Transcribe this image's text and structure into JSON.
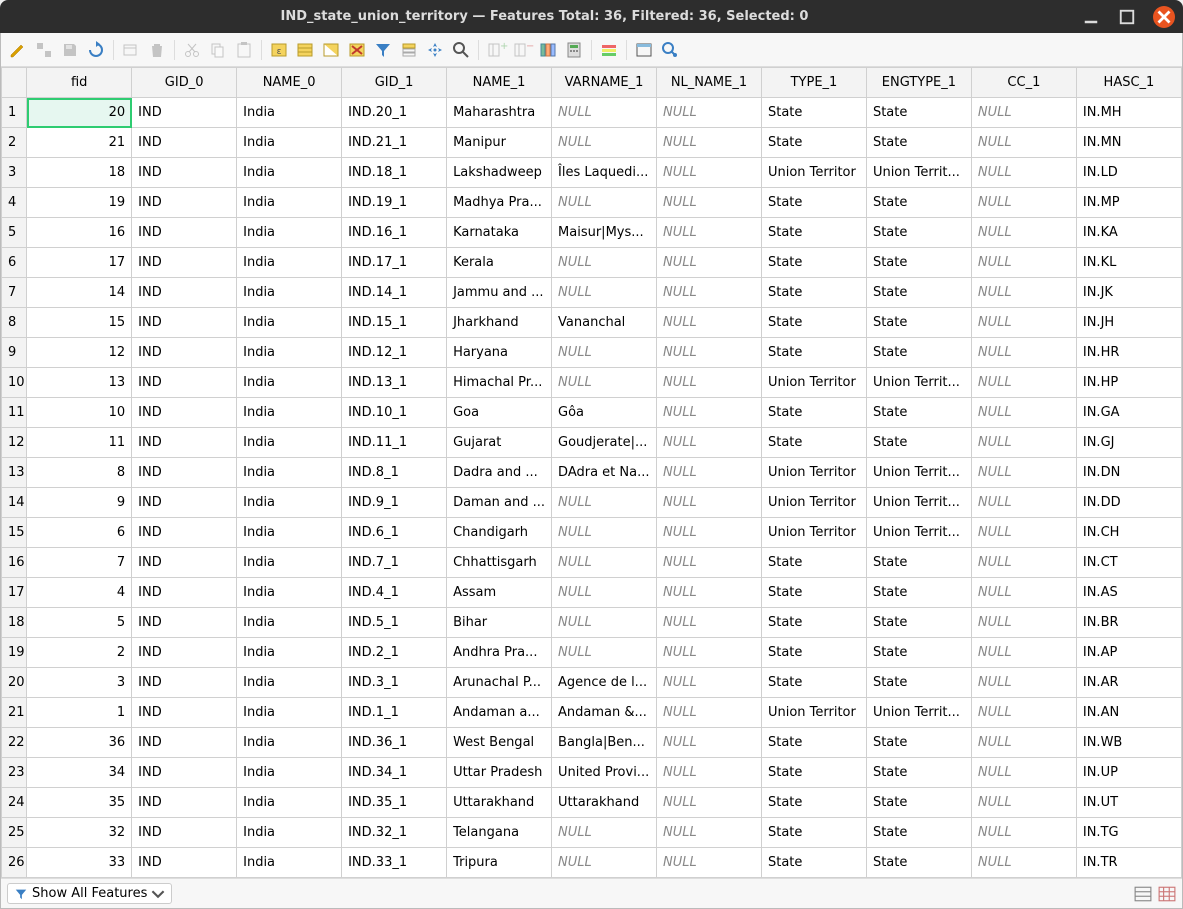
{
  "window": {
    "title": "IND_state_union_territory — Features Total: 36, Filtered: 36, Selected: 0"
  },
  "toolbar": {
    "icons": [
      "pencil",
      "multi-edit",
      "save",
      "refresh",
      "",
      "add-row",
      "delete-row",
      "",
      "cut",
      "copy",
      "paste",
      "",
      "select-new",
      "select-all",
      "invert",
      "deselect",
      "filter-select",
      "filter-move",
      "filter",
      "pan-to",
      "zoom-to",
      "",
      "copy2",
      "paste2",
      "field-calc",
      "field-calc2",
      "",
      "conditional",
      "",
      "dock",
      "actions"
    ]
  },
  "table": {
    "columns": [
      "fid",
      "GID_0",
      "NAME_0",
      "GID_1",
      "NAME_1",
      "VARNAME_1",
      "NL_NAME_1",
      "TYPE_1",
      "ENGTYPE_1",
      "CC_1",
      "HASC_1"
    ],
    "null_label": "NULL",
    "selected_cell": {
      "row": 0,
      "col": 0
    },
    "rows": [
      {
        "n": 1,
        "fid": 20,
        "gid0": "IND",
        "name0": "India",
        "gid1": "IND.20_1",
        "name1": "Maharashtra",
        "varname1": null,
        "nlname1": null,
        "type1": "State",
        "engtype1": "State",
        "cc1": null,
        "hasc1": "IN.MH"
      },
      {
        "n": 2,
        "fid": 21,
        "gid0": "IND",
        "name0": "India",
        "gid1": "IND.21_1",
        "name1": "Manipur",
        "varname1": null,
        "nlname1": null,
        "type1": "State",
        "engtype1": "State",
        "cc1": null,
        "hasc1": "IN.MN"
      },
      {
        "n": 3,
        "fid": 18,
        "gid0": "IND",
        "name0": "India",
        "gid1": "IND.18_1",
        "name1": "Lakshadweep",
        "varname1": "Îles Laquedi...",
        "nlname1": null,
        "type1": "Union Territor",
        "engtype1": "Union Territ...",
        "cc1": null,
        "hasc1": "IN.LD"
      },
      {
        "n": 4,
        "fid": 19,
        "gid0": "IND",
        "name0": "India",
        "gid1": "IND.19_1",
        "name1": "Madhya Pra...",
        "varname1": null,
        "nlname1": null,
        "type1": "State",
        "engtype1": "State",
        "cc1": null,
        "hasc1": "IN.MP"
      },
      {
        "n": 5,
        "fid": 16,
        "gid0": "IND",
        "name0": "India",
        "gid1": "IND.16_1",
        "name1": "Karnataka",
        "varname1": "Maisur|Mys...",
        "nlname1": null,
        "type1": "State",
        "engtype1": "State",
        "cc1": null,
        "hasc1": "IN.KA"
      },
      {
        "n": 6,
        "fid": 17,
        "gid0": "IND",
        "name0": "India",
        "gid1": "IND.17_1",
        "name1": "Kerala",
        "varname1": null,
        "nlname1": null,
        "type1": "State",
        "engtype1": "State",
        "cc1": null,
        "hasc1": "IN.KL"
      },
      {
        "n": 7,
        "fid": 14,
        "gid0": "IND",
        "name0": "India",
        "gid1": "IND.14_1",
        "name1": "Jammu and ...",
        "varname1": null,
        "nlname1": null,
        "type1": "State",
        "engtype1": "State",
        "cc1": null,
        "hasc1": "IN.JK"
      },
      {
        "n": 8,
        "fid": 15,
        "gid0": "IND",
        "name0": "India",
        "gid1": "IND.15_1",
        "name1": "Jharkhand",
        "varname1": "Vananchal",
        "nlname1": null,
        "type1": "State",
        "engtype1": "State",
        "cc1": null,
        "hasc1": "IN.JH"
      },
      {
        "n": 9,
        "fid": 12,
        "gid0": "IND",
        "name0": "India",
        "gid1": "IND.12_1",
        "name1": "Haryana",
        "varname1": null,
        "nlname1": null,
        "type1": "State",
        "engtype1": "State",
        "cc1": null,
        "hasc1": "IN.HR"
      },
      {
        "n": 10,
        "fid": 13,
        "gid0": "IND",
        "name0": "India",
        "gid1": "IND.13_1",
        "name1": "Himachal Pr...",
        "varname1": null,
        "nlname1": null,
        "type1": "Union Territor",
        "engtype1": "Union Territ...",
        "cc1": null,
        "hasc1": "IN.HP"
      },
      {
        "n": 11,
        "fid": 10,
        "gid0": "IND",
        "name0": "India",
        "gid1": "IND.10_1",
        "name1": "Goa",
        "varname1": "Gôa",
        "nlname1": null,
        "type1": "State",
        "engtype1": "State",
        "cc1": null,
        "hasc1": "IN.GA"
      },
      {
        "n": 12,
        "fid": 11,
        "gid0": "IND",
        "name0": "India",
        "gid1": "IND.11_1",
        "name1": "Gujarat",
        "varname1": "Goudjerate|...",
        "nlname1": null,
        "type1": "State",
        "engtype1": "State",
        "cc1": null,
        "hasc1": "IN.GJ"
      },
      {
        "n": 13,
        "fid": 8,
        "gid0": "IND",
        "name0": "India",
        "gid1": "IND.8_1",
        "name1": "Dadra and ...",
        "varname1": "DAdra et Na...",
        "nlname1": null,
        "type1": "Union Territor",
        "engtype1": "Union Territ...",
        "cc1": null,
        "hasc1": "IN.DN"
      },
      {
        "n": 14,
        "fid": 9,
        "gid0": "IND",
        "name0": "India",
        "gid1": "IND.9_1",
        "name1": "Daman and ...",
        "varname1": null,
        "nlname1": null,
        "type1": "Union Territor",
        "engtype1": "Union Territ...",
        "cc1": null,
        "hasc1": "IN.DD"
      },
      {
        "n": 15,
        "fid": 6,
        "gid0": "IND",
        "name0": "India",
        "gid1": "IND.6_1",
        "name1": "Chandigarh",
        "varname1": null,
        "nlname1": null,
        "type1": "Union Territor",
        "engtype1": "Union Territ...",
        "cc1": null,
        "hasc1": "IN.CH"
      },
      {
        "n": 16,
        "fid": 7,
        "gid0": "IND",
        "name0": "India",
        "gid1": "IND.7_1",
        "name1": "Chhattisgarh",
        "varname1": null,
        "nlname1": null,
        "type1": "State",
        "engtype1": "State",
        "cc1": null,
        "hasc1": "IN.CT"
      },
      {
        "n": 17,
        "fid": 4,
        "gid0": "IND",
        "name0": "India",
        "gid1": "IND.4_1",
        "name1": "Assam",
        "varname1": null,
        "nlname1": null,
        "type1": "State",
        "engtype1": "State",
        "cc1": null,
        "hasc1": "IN.AS"
      },
      {
        "n": 18,
        "fid": 5,
        "gid0": "IND",
        "name0": "India",
        "gid1": "IND.5_1",
        "name1": "Bihar",
        "varname1": null,
        "nlname1": null,
        "type1": "State",
        "engtype1": "State",
        "cc1": null,
        "hasc1": "IN.BR"
      },
      {
        "n": 19,
        "fid": 2,
        "gid0": "IND",
        "name0": "India",
        "gid1": "IND.2_1",
        "name1": "Andhra Pra...",
        "varname1": null,
        "nlname1": null,
        "type1": "State",
        "engtype1": "State",
        "cc1": null,
        "hasc1": "IN.AP"
      },
      {
        "n": 20,
        "fid": 3,
        "gid0": "IND",
        "name0": "India",
        "gid1": "IND.3_1",
        "name1": "Arunachal P...",
        "varname1": "Agence de l...",
        "nlname1": null,
        "type1": "State",
        "engtype1": "State",
        "cc1": null,
        "hasc1": "IN.AR"
      },
      {
        "n": 21,
        "fid": 1,
        "gid0": "IND",
        "name0": "India",
        "gid1": "IND.1_1",
        "name1": "Andaman a...",
        "varname1": "Andaman &...",
        "nlname1": null,
        "type1": "Union Territor",
        "engtype1": "Union Territ...",
        "cc1": null,
        "hasc1": "IN.AN"
      },
      {
        "n": 22,
        "fid": 36,
        "gid0": "IND",
        "name0": "India",
        "gid1": "IND.36_1",
        "name1": "West Bengal",
        "varname1": "Bangla|Ben...",
        "nlname1": null,
        "type1": "State",
        "engtype1": "State",
        "cc1": null,
        "hasc1": "IN.WB"
      },
      {
        "n": 23,
        "fid": 34,
        "gid0": "IND",
        "name0": "India",
        "gid1": "IND.34_1",
        "name1": "Uttar Pradesh",
        "varname1": "United Provi...",
        "nlname1": null,
        "type1": "State",
        "engtype1": "State",
        "cc1": null,
        "hasc1": "IN.UP"
      },
      {
        "n": 24,
        "fid": 35,
        "gid0": "IND",
        "name0": "India",
        "gid1": "IND.35_1",
        "name1": "Uttarakhand",
        "varname1": "Uttarakhand",
        "nlname1": null,
        "type1": "State",
        "engtype1": "State",
        "cc1": null,
        "hasc1": "IN.UT"
      },
      {
        "n": 25,
        "fid": 32,
        "gid0": "IND",
        "name0": "India",
        "gid1": "IND.32_1",
        "name1": "Telangana",
        "varname1": null,
        "nlname1": null,
        "type1": "State",
        "engtype1": "State",
        "cc1": null,
        "hasc1": "IN.TG"
      },
      {
        "n": 26,
        "fid": 33,
        "gid0": "IND",
        "name0": "India",
        "gid1": "IND.33_1",
        "name1": "Tripura",
        "varname1": null,
        "nlname1": null,
        "type1": "State",
        "engtype1": "State",
        "cc1": null,
        "hasc1": "IN.TR"
      }
    ]
  },
  "statusbar": {
    "filter_label": "Show All Features"
  },
  "colors": {
    "titlebar_bg": "#2d2d2d",
    "close_btn": "#e95420",
    "selection_border": "#2ecc71",
    "selection_bg": "#e6f7f0",
    "header_bg": "#f3f3f3",
    "grid_border": "#d0d0d0",
    "null_text": "#888888"
  }
}
